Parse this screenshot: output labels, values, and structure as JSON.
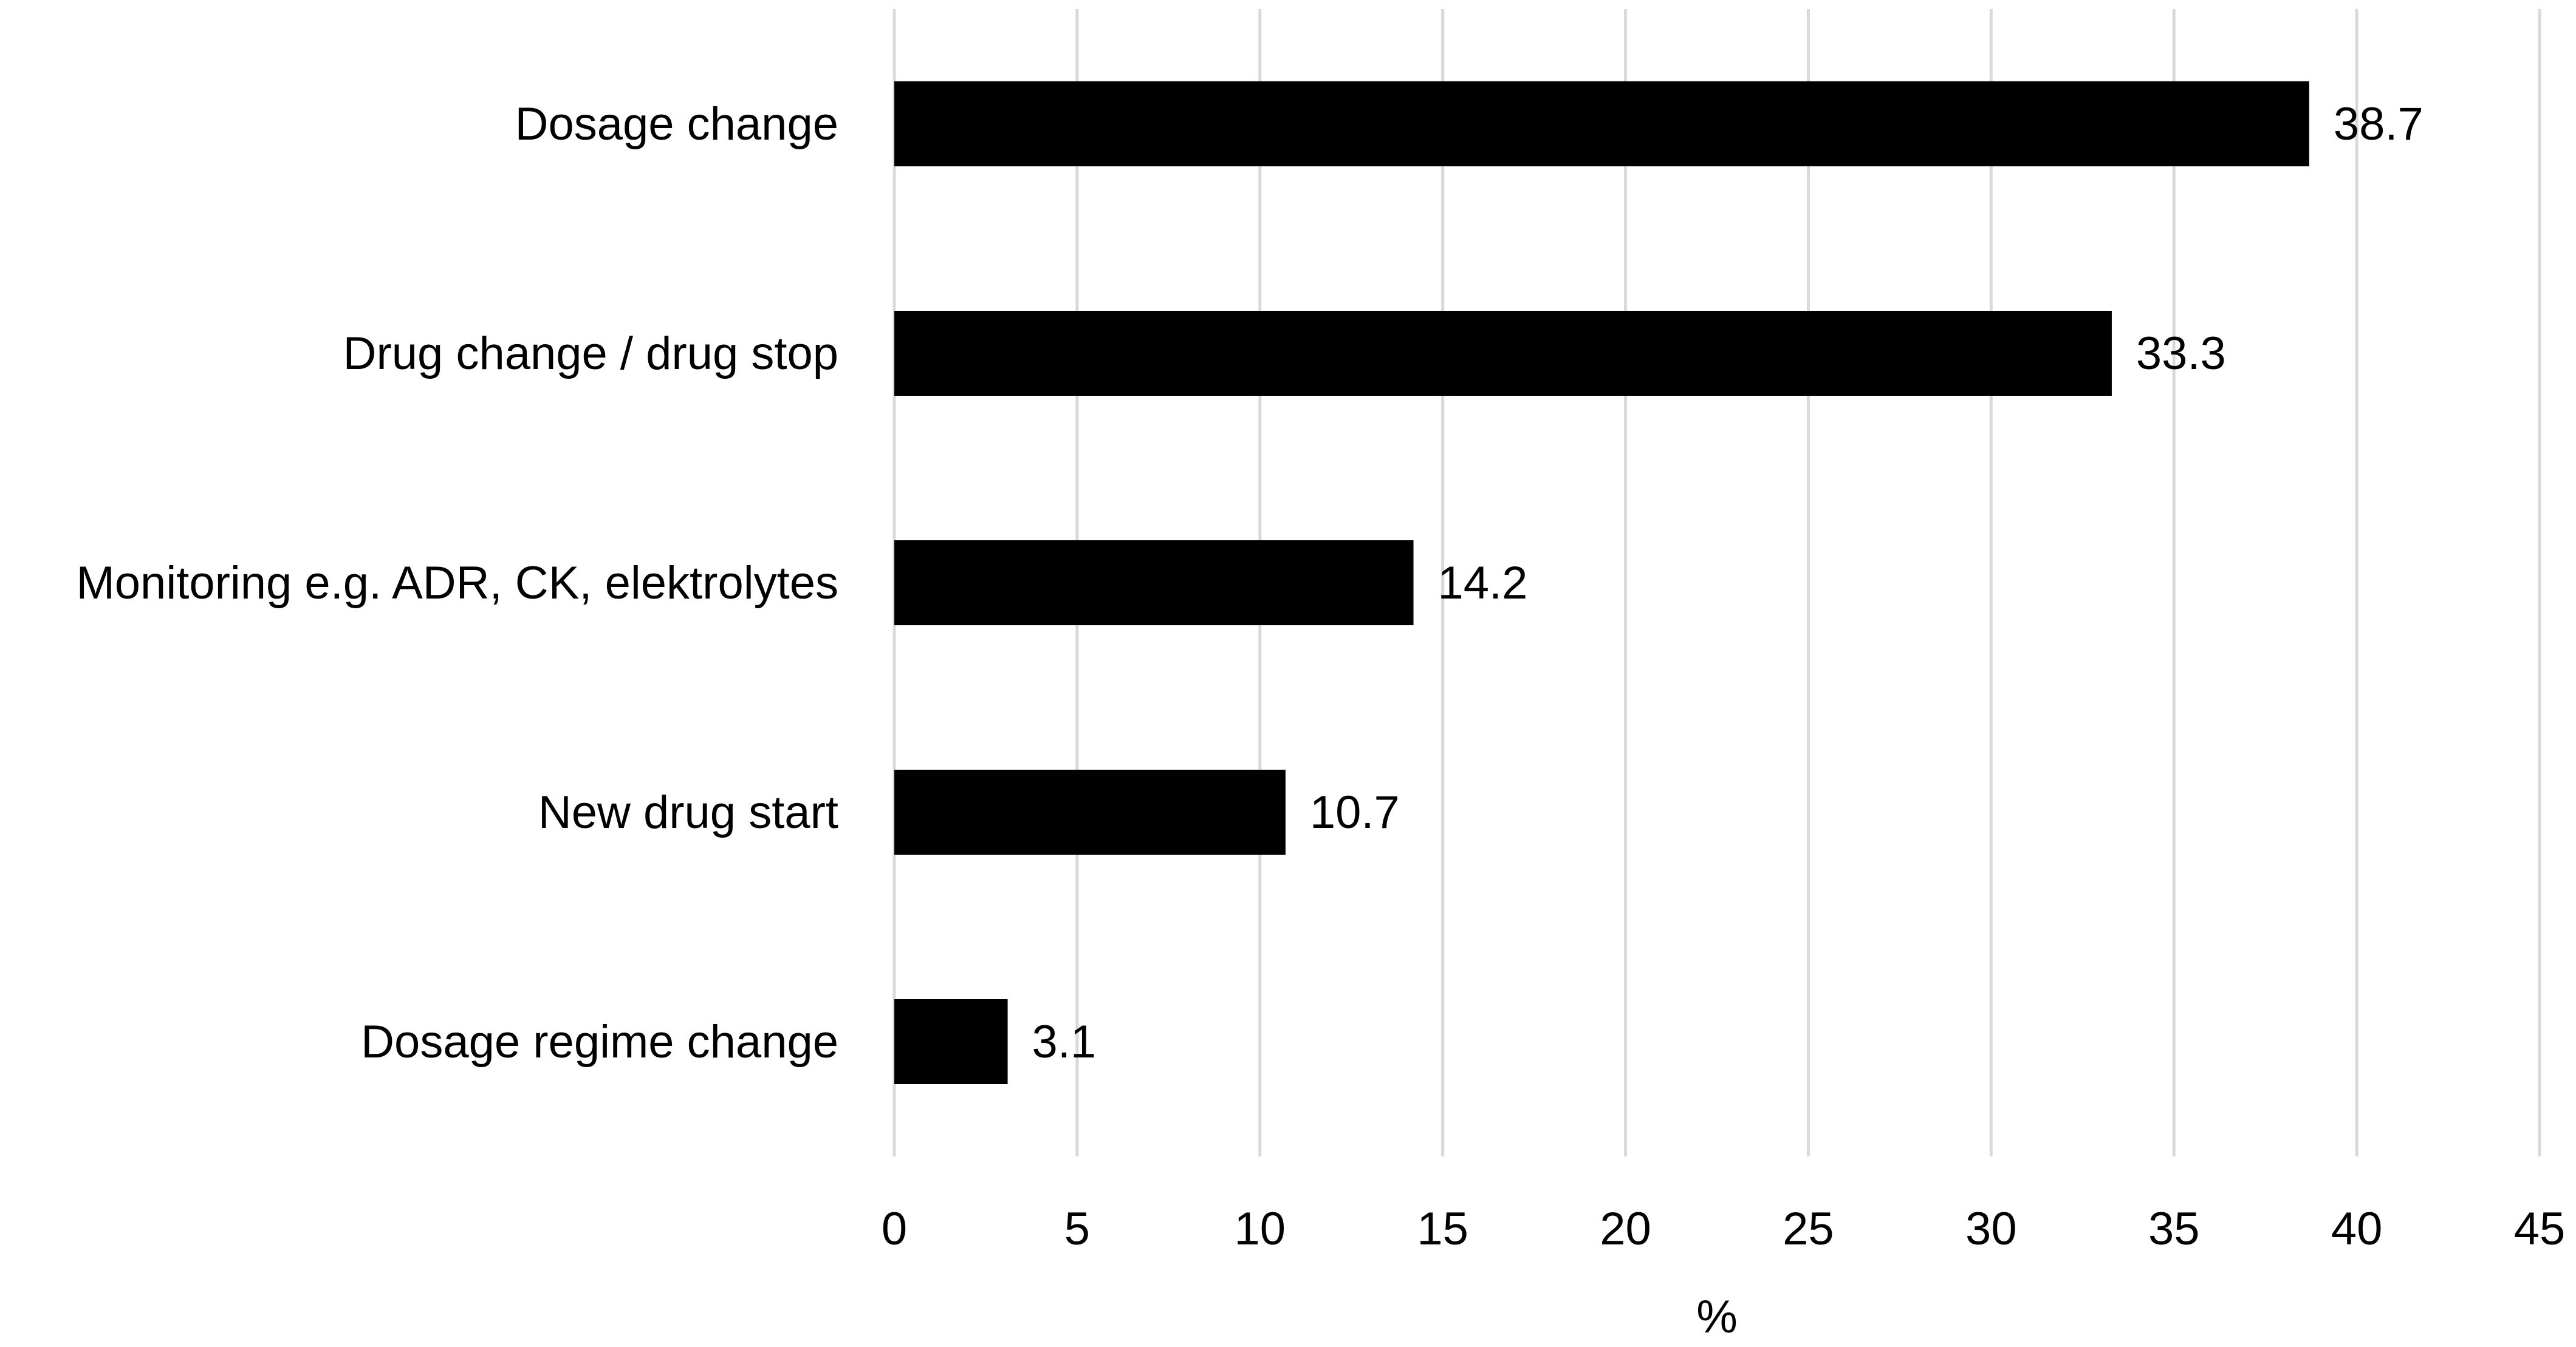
{
  "chart_data": {
    "type": "bar",
    "orientation": "horizontal",
    "categories": [
      "Dosage change",
      "Drug change / drug stop",
      "Monitoring e.g. ADR, CK, elektrolytes",
      "New drug start",
      "Dosage regime change"
    ],
    "values": [
      38.7,
      33.3,
      14.2,
      10.7,
      3.1
    ],
    "value_labels": [
      "38.7",
      "33.3",
      "14.2",
      "10.7",
      "3.1"
    ],
    "title": "",
    "xlabel": "%",
    "ylabel": "",
    "xlim": [
      0,
      45
    ],
    "xticks": [
      0,
      5,
      10,
      15,
      20,
      25,
      30,
      35,
      40,
      45
    ],
    "xtick_labels": [
      "0",
      "5",
      "10",
      "15",
      "20",
      "25",
      "30",
      "35",
      "40",
      "45"
    ],
    "grid": "vertical",
    "legend": "none",
    "colors": {
      "bar": "#000000",
      "grid": "#d9d9d9",
      "text": "#000000",
      "background": "#ffffff"
    }
  }
}
